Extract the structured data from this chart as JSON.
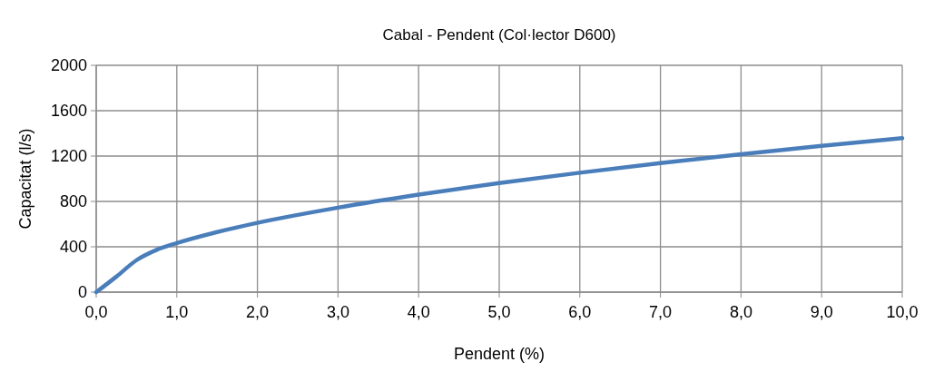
{
  "chart_data": {
    "type": "line",
    "title": "Cabal - Pendent (Col·lector D600)",
    "xlabel": "Pendent (%)",
    "ylabel": "Capacitat (l/s)",
    "x": [
      0,
      0.25,
      0.5,
      0.75,
      1,
      1.5,
      2,
      3,
      4,
      5,
      6,
      7,
      8,
      9,
      10
    ],
    "series": [
      {
        "color": "#4a7ebb",
        "values": [
          0,
          137,
          282,
          373,
          433,
          530,
          611,
          745,
          860,
          962,
          1053,
          1138,
          1216,
          1290,
          1358
        ]
      }
    ],
    "xlim": [
      0,
      10
    ],
    "xticks": [
      {
        "value": 0,
        "label": "0,0"
      },
      {
        "value": 1,
        "label": "1,0"
      },
      {
        "value": 2,
        "label": "2,0"
      },
      {
        "value": 3,
        "label": "3,0"
      },
      {
        "value": 4,
        "label": "4,0"
      },
      {
        "value": 5,
        "label": "5,0"
      },
      {
        "value": 6,
        "label": "6,0"
      },
      {
        "value": 7,
        "label": "7,0"
      },
      {
        "value": 8,
        "label": "8,0"
      },
      {
        "value": 9,
        "label": "9,0"
      },
      {
        "value": 10,
        "label": "10,0"
      }
    ],
    "ylim": [
      0,
      2000
    ],
    "yticks": [
      0,
      400,
      800,
      1200,
      1600,
      2000
    ],
    "grid": true,
    "marker": "none",
    "line_style": "solid"
  }
}
